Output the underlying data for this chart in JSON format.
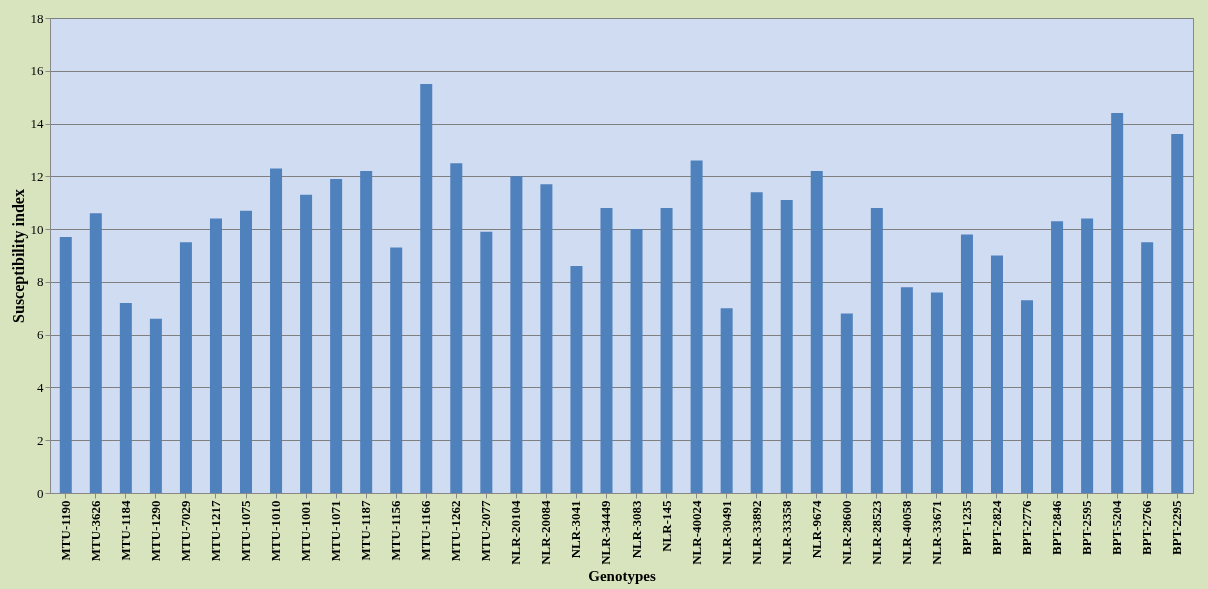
{
  "chart_data": {
    "type": "bar",
    "xlabel": "Genotypes",
    "ylabel": "Susceptibility index",
    "categories": [
      "MTU-1190",
      "MTU-3626",
      "MTU-1184",
      "MTU-1290",
      "MTU-7029",
      "MTU-1217",
      "MTU-1075",
      "MTU-1010",
      "MTU-1001",
      "MTU-1071",
      "MTU-1187",
      "MTU-1156",
      "MTU-1166",
      "MTU-1262",
      "MTU-2077",
      "NLR-20104",
      "NLR-20084",
      "NLR-3041",
      "NLR-34449",
      "NLR-3083",
      "NLR-145",
      "NLR-40024",
      "NLR-30491",
      "NLR-33892",
      "NLR-33358",
      "NLR-9674",
      "NLR-28600",
      "NLR-28523",
      "NLR-40058",
      "NLR-33671",
      "BPT-1235",
      "BPT-2824",
      "BPT-2776",
      "BPT-2846",
      "BPT-2595",
      "BPT-5204",
      "BPT-2766",
      "BPT-2295"
    ],
    "values": [
      9.7,
      10.6,
      7.2,
      6.6,
      9.5,
      10.4,
      10.7,
      12.3,
      11.3,
      11.9,
      12.2,
      9.3,
      15.5,
      12.5,
      9.9,
      12.0,
      11.7,
      8.6,
      10.8,
      10.0,
      10.8,
      12.6,
      7.0,
      11.4,
      11.1,
      12.2,
      6.8,
      10.8,
      7.8,
      7.6,
      9.8,
      9.0,
      7.3,
      10.3,
      10.4,
      14.4,
      9.5,
      13.6
    ],
    "color": "#4f81bd",
    "ylim": [
      0,
      18
    ],
    "yticks": [
      0,
      2,
      4,
      6,
      8,
      10,
      12,
      14,
      16,
      18
    ],
    "grid": "y"
  }
}
